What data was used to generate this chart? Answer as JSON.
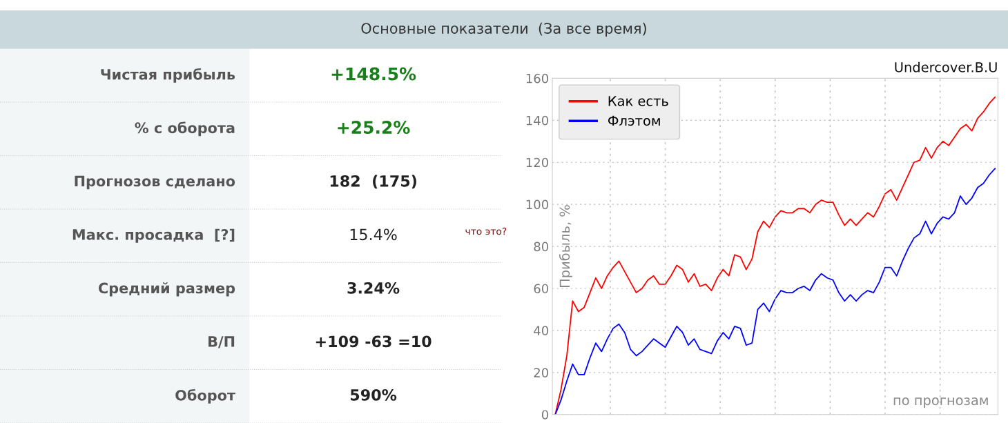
{
  "chart_data": [
    {
      "type": "other",
      "title": "Основные показатели  (За все время)",
      "annotations": [
        "Чистая прибыль",
        "+148.5%",
        "% с оборота",
        "+25.2%",
        "Прогнозов сделано",
        "182  (175)",
        "Макс. просадка  [?]",
        "15.4%",
        "что это?",
        "Средний размер",
        "3.24%",
        "В/П",
        "+109 -63 =10",
        "Оборот",
        "590%"
      ]
    },
    {
      "type": "line",
      "subtitle": "Undercover.B.U",
      "ylabel": "Прибыль, %",
      "xlabel": "по прогнозам",
      "categories": [
        null,
        null,
        null,
        null,
        null,
        null,
        null,
        null,
        null,
        null,
        null,
        null,
        null,
        null,
        null,
        null,
        null,
        null,
        null,
        null,
        null,
        null,
        null,
        null,
        null,
        null,
        null,
        null,
        null,
        null,
        null,
        null,
        null,
        null,
        null,
        null,
        null,
        null,
        null,
        null,
        null,
        null,
        null,
        null,
        null,
        null,
        null,
        null,
        null,
        null,
        null,
        null,
        null,
        null,
        null,
        null,
        null,
        null,
        null,
        null,
        null,
        null,
        null,
        null,
        null,
        null,
        null,
        null,
        null,
        null,
        null,
        null,
        null,
        null,
        null,
        null,
        null
      ],
      "ylim": [
        0,
        160
      ],
      "yticks": [
        0,
        20,
        40,
        60,
        80,
        100,
        120,
        140,
        160
      ],
      "grid": true,
      "legend": "top left",
      "line_style": "solid",
      "marker": "none",
      "series": [
        {
          "name": "Как есть",
          "color": "#ff0000",
          "values": [
            0,
            12,
            28,
            54,
            49,
            51,
            58,
            65,
            60,
            66,
            70,
            73,
            68,
            63,
            58,
            60,
            64,
            66,
            62,
            62,
            66,
            71,
            69,
            63,
            67,
            61,
            62,
            59,
            65,
            69,
            66,
            76,
            75,
            69,
            74,
            87,
            92,
            89,
            94,
            97,
            96,
            96,
            98,
            98,
            96,
            100,
            102,
            101,
            101,
            95,
            90,
            93,
            90,
            93,
            96,
            94,
            99,
            105,
            107,
            102,
            108,
            114,
            120,
            121,
            127,
            122,
            127,
            130,
            128,
            132,
            136,
            138,
            135,
            141,
            144,
            148,
            151
          ]
        },
        {
          "name": "Флэтом",
          "color": "#0000ff",
          "values": [
            0,
            7,
            16,
            24,
            19,
            19,
            27,
            34,
            30,
            36,
            41,
            43,
            39,
            31,
            28,
            30,
            33,
            36,
            34,
            32,
            37,
            42,
            39,
            33,
            36,
            31,
            30,
            29,
            35,
            39,
            36,
            42,
            41,
            33,
            34,
            50,
            53,
            49,
            55,
            59,
            58,
            58,
            60,
            61,
            59,
            64,
            67,
            65,
            64,
            58,
            54,
            57,
            54,
            57,
            59,
            58,
            63,
            70,
            70,
            66,
            73,
            79,
            84,
            86,
            92,
            86,
            91,
            94,
            93,
            96,
            104,
            100,
            103,
            108,
            110,
            114,
            117
          ]
        }
      ]
    }
  ]
}
